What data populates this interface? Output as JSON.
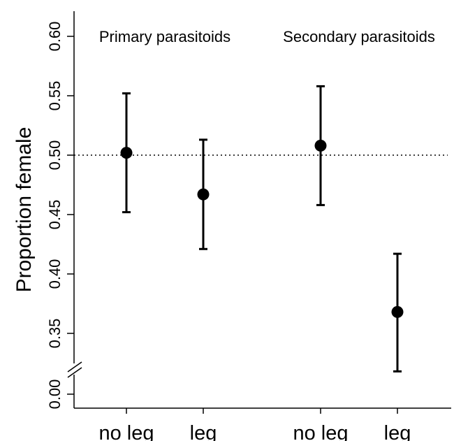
{
  "chart_data": {
    "type": "scatter",
    "style": "point-with-error-bars",
    "ylabel": "Proportion female",
    "y_ticks": [
      "0.00",
      "0.35",
      "0.40",
      "0.45",
      "0.50",
      "0.55",
      "0.60"
    ],
    "y_axis_break": "between 0.00 and 0.35",
    "ylim": [
      0.3,
      0.62
    ],
    "reference_line": {
      "y": 0.5,
      "style": "dotted"
    },
    "groups": [
      {
        "label": "Primary parasitoids",
        "categories": [
          "no leg",
          "leg"
        ]
      },
      {
        "label": "Secondary parasitoids",
        "categories": [
          "no leg",
          "leg"
        ]
      }
    ],
    "categories": [
      "no leg",
      "leg",
      "no leg",
      "leg"
    ],
    "points": [
      {
        "group": "Primary parasitoids",
        "category": "no leg",
        "value": 0.502,
        "lower": 0.452,
        "upper": 0.552
      },
      {
        "group": "Primary parasitoids",
        "category": "leg",
        "value": 0.467,
        "lower": 0.421,
        "upper": 0.513
      },
      {
        "group": "Secondary parasitoids",
        "category": "no leg",
        "value": 0.508,
        "lower": 0.458,
        "upper": 0.558
      },
      {
        "group": "Secondary parasitoids",
        "category": "leg",
        "value": 0.368,
        "lower": 0.318,
        "upper": 0.417
      }
    ],
    "grid": false,
    "colors": {
      "points": "#000000",
      "errorbars": "#000000",
      "axis": "#000000"
    }
  }
}
